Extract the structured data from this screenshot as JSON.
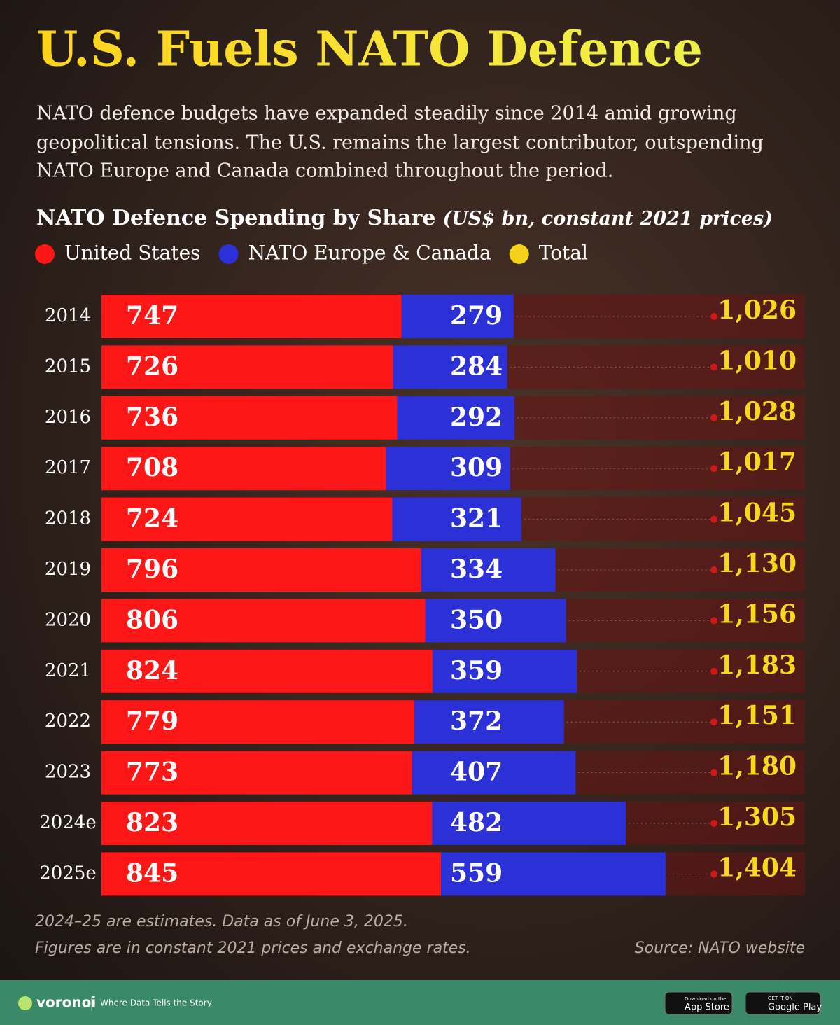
{
  "title": "U.S. Fuels NATO Defence",
  "subtitle": [
    "NATO defence budgets have expanded steadily since 2014 amid growing",
    "geopolitical tensions. The U.S. remains the largest contributor, outspending",
    "NATO Europe and Canada combined throughout the period."
  ],
  "chart_data": {
    "type": "stacked-bar-horizontal",
    "title": "NATO Defence Spending by Share",
    "subtitle": "(US$ bn, constant 2021 prices)",
    "categories": [
      "2014",
      "2015",
      "2016",
      "2017",
      "2018",
      "2019",
      "2020",
      "2021",
      "2022",
      "2023",
      "2024e",
      "2025e"
    ],
    "series": [
      {
        "name": "United States",
        "color": "#ff1616",
        "values": [
          747,
          726,
          736,
          708,
          724,
          796,
          806,
          824,
          779,
          773,
          823,
          845
        ]
      },
      {
        "name": "NATO Europe & Canada",
        "color": "#2b31d6",
        "values": [
          279,
          284,
          292,
          309,
          321,
          334,
          350,
          359,
          372,
          407,
          482,
          559
        ]
      },
      {
        "name": "Total",
        "color": "#f5d21a",
        "values": [
          1026,
          1010,
          1028,
          1017,
          1045,
          1130,
          1156,
          1183,
          1151,
          1180,
          1305,
          1404
        ],
        "value_labels": [
          "1,026",
          "1,010",
          "1,028",
          "1,017",
          "1,045",
          "1,130",
          "1,156",
          "1,183",
          "1,151",
          "1,180",
          "1,305",
          "1,404"
        ]
      }
    ],
    "notes": [
      "2024–25 are estimates. Data as of June 3, 2025.",
      "Figures are in constant 2021 prices and exchange rates."
    ],
    "source": "Source: NATO website"
  },
  "footer": {
    "brand": "voronoi",
    "tagline": "Where Data Tells the Story",
    "app_store_small": "Download on the",
    "app_store": "App Store",
    "google_small": "GET IT ON",
    "google": "Google Play"
  }
}
